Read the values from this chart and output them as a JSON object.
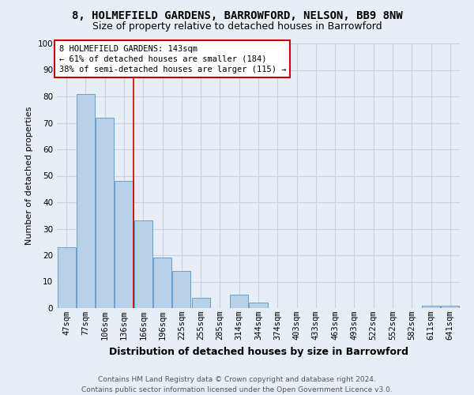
{
  "title": "8, HOLMEFIELD GARDENS, BARROWFORD, NELSON, BB9 8NW",
  "subtitle": "Size of property relative to detached houses in Barrowford",
  "xlabel": "Distribution of detached houses by size in Barrowford",
  "ylabel": "Number of detached properties",
  "categories": [
    "47sqm",
    "77sqm",
    "106sqm",
    "136sqm",
    "166sqm",
    "196sqm",
    "225sqm",
    "255sqm",
    "285sqm",
    "314sqm",
    "344sqm",
    "374sqm",
    "403sqm",
    "433sqm",
    "463sqm",
    "493sqm",
    "522sqm",
    "552sqm",
    "582sqm",
    "611sqm",
    "641sqm"
  ],
  "values": [
    23,
    81,
    72,
    48,
    33,
    19,
    14,
    4,
    0,
    5,
    2,
    0,
    0,
    0,
    0,
    0,
    0,
    0,
    0,
    1,
    1
  ],
  "bar_color": "#b8d0e8",
  "bar_edge_color": "#6aa0cc",
  "grid_color": "#c8d4e4",
  "background_color": "#e8eef6",
  "vline_x": 3.5,
  "vline_color": "#cc0000",
  "annotation_text": "8 HOLMEFIELD GARDENS: 143sqm\n← 61% of detached houses are smaller (184)\n38% of semi-detached houses are larger (115) →",
  "annotation_box_color": "#ffffff",
  "annotation_box_edge": "#cc0000",
  "footer_line1": "Contains HM Land Registry data © Crown copyright and database right 2024.",
  "footer_line2": "Contains public sector information licensed under the Open Government Licence v3.0.",
  "ylim": [
    0,
    100
  ],
  "yticks": [
    0,
    10,
    20,
    30,
    40,
    50,
    60,
    70,
    80,
    90,
    100
  ],
  "title_fontsize": 10,
  "subtitle_fontsize": 9,
  "xlabel_fontsize": 9,
  "ylabel_fontsize": 8,
  "tick_fontsize": 7.5,
  "annotation_fontsize": 7.5,
  "footer_fontsize": 6.5
}
